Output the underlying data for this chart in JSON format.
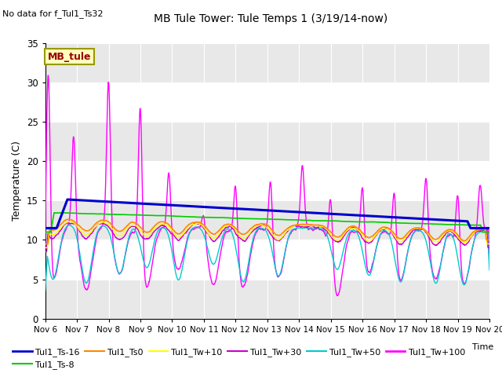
{
  "title": "MB Tule Tower: Tule Temps 1 (3/19/14-now)",
  "no_data_label": "No data for f_Tul1_Ts32",
  "mb_tule_label": "MB_tule",
  "xlabel": "Time",
  "ylabel": "Temperature (C)",
  "xlim": [
    0,
    14
  ],
  "ylim": [
    0,
    35
  ],
  "yticks": [
    0,
    5,
    10,
    15,
    20,
    25,
    30,
    35
  ],
  "xtick_labels": [
    "Nov 6",
    "Nov 7",
    "Nov 8",
    "Nov 9",
    "Nov 10",
    "Nov 11",
    "Nov 12",
    "Nov 13",
    "Nov 14",
    "Nov 15",
    "Nov 16",
    "Nov 17",
    "Nov 18",
    "Nov 19",
    "Nov 20"
  ],
  "colors": {
    "ts16": "#0000cc",
    "ts8": "#00cc00",
    "ts0": "#ff8800",
    "tw10": "#ffff00",
    "tw30": "#cc00cc",
    "tw50": "#00cccc",
    "tw100": "#ff00ff"
  },
  "band_colors": [
    "#ffffff",
    "#e8e8e8"
  ],
  "bg_color": "#e8e8e8"
}
